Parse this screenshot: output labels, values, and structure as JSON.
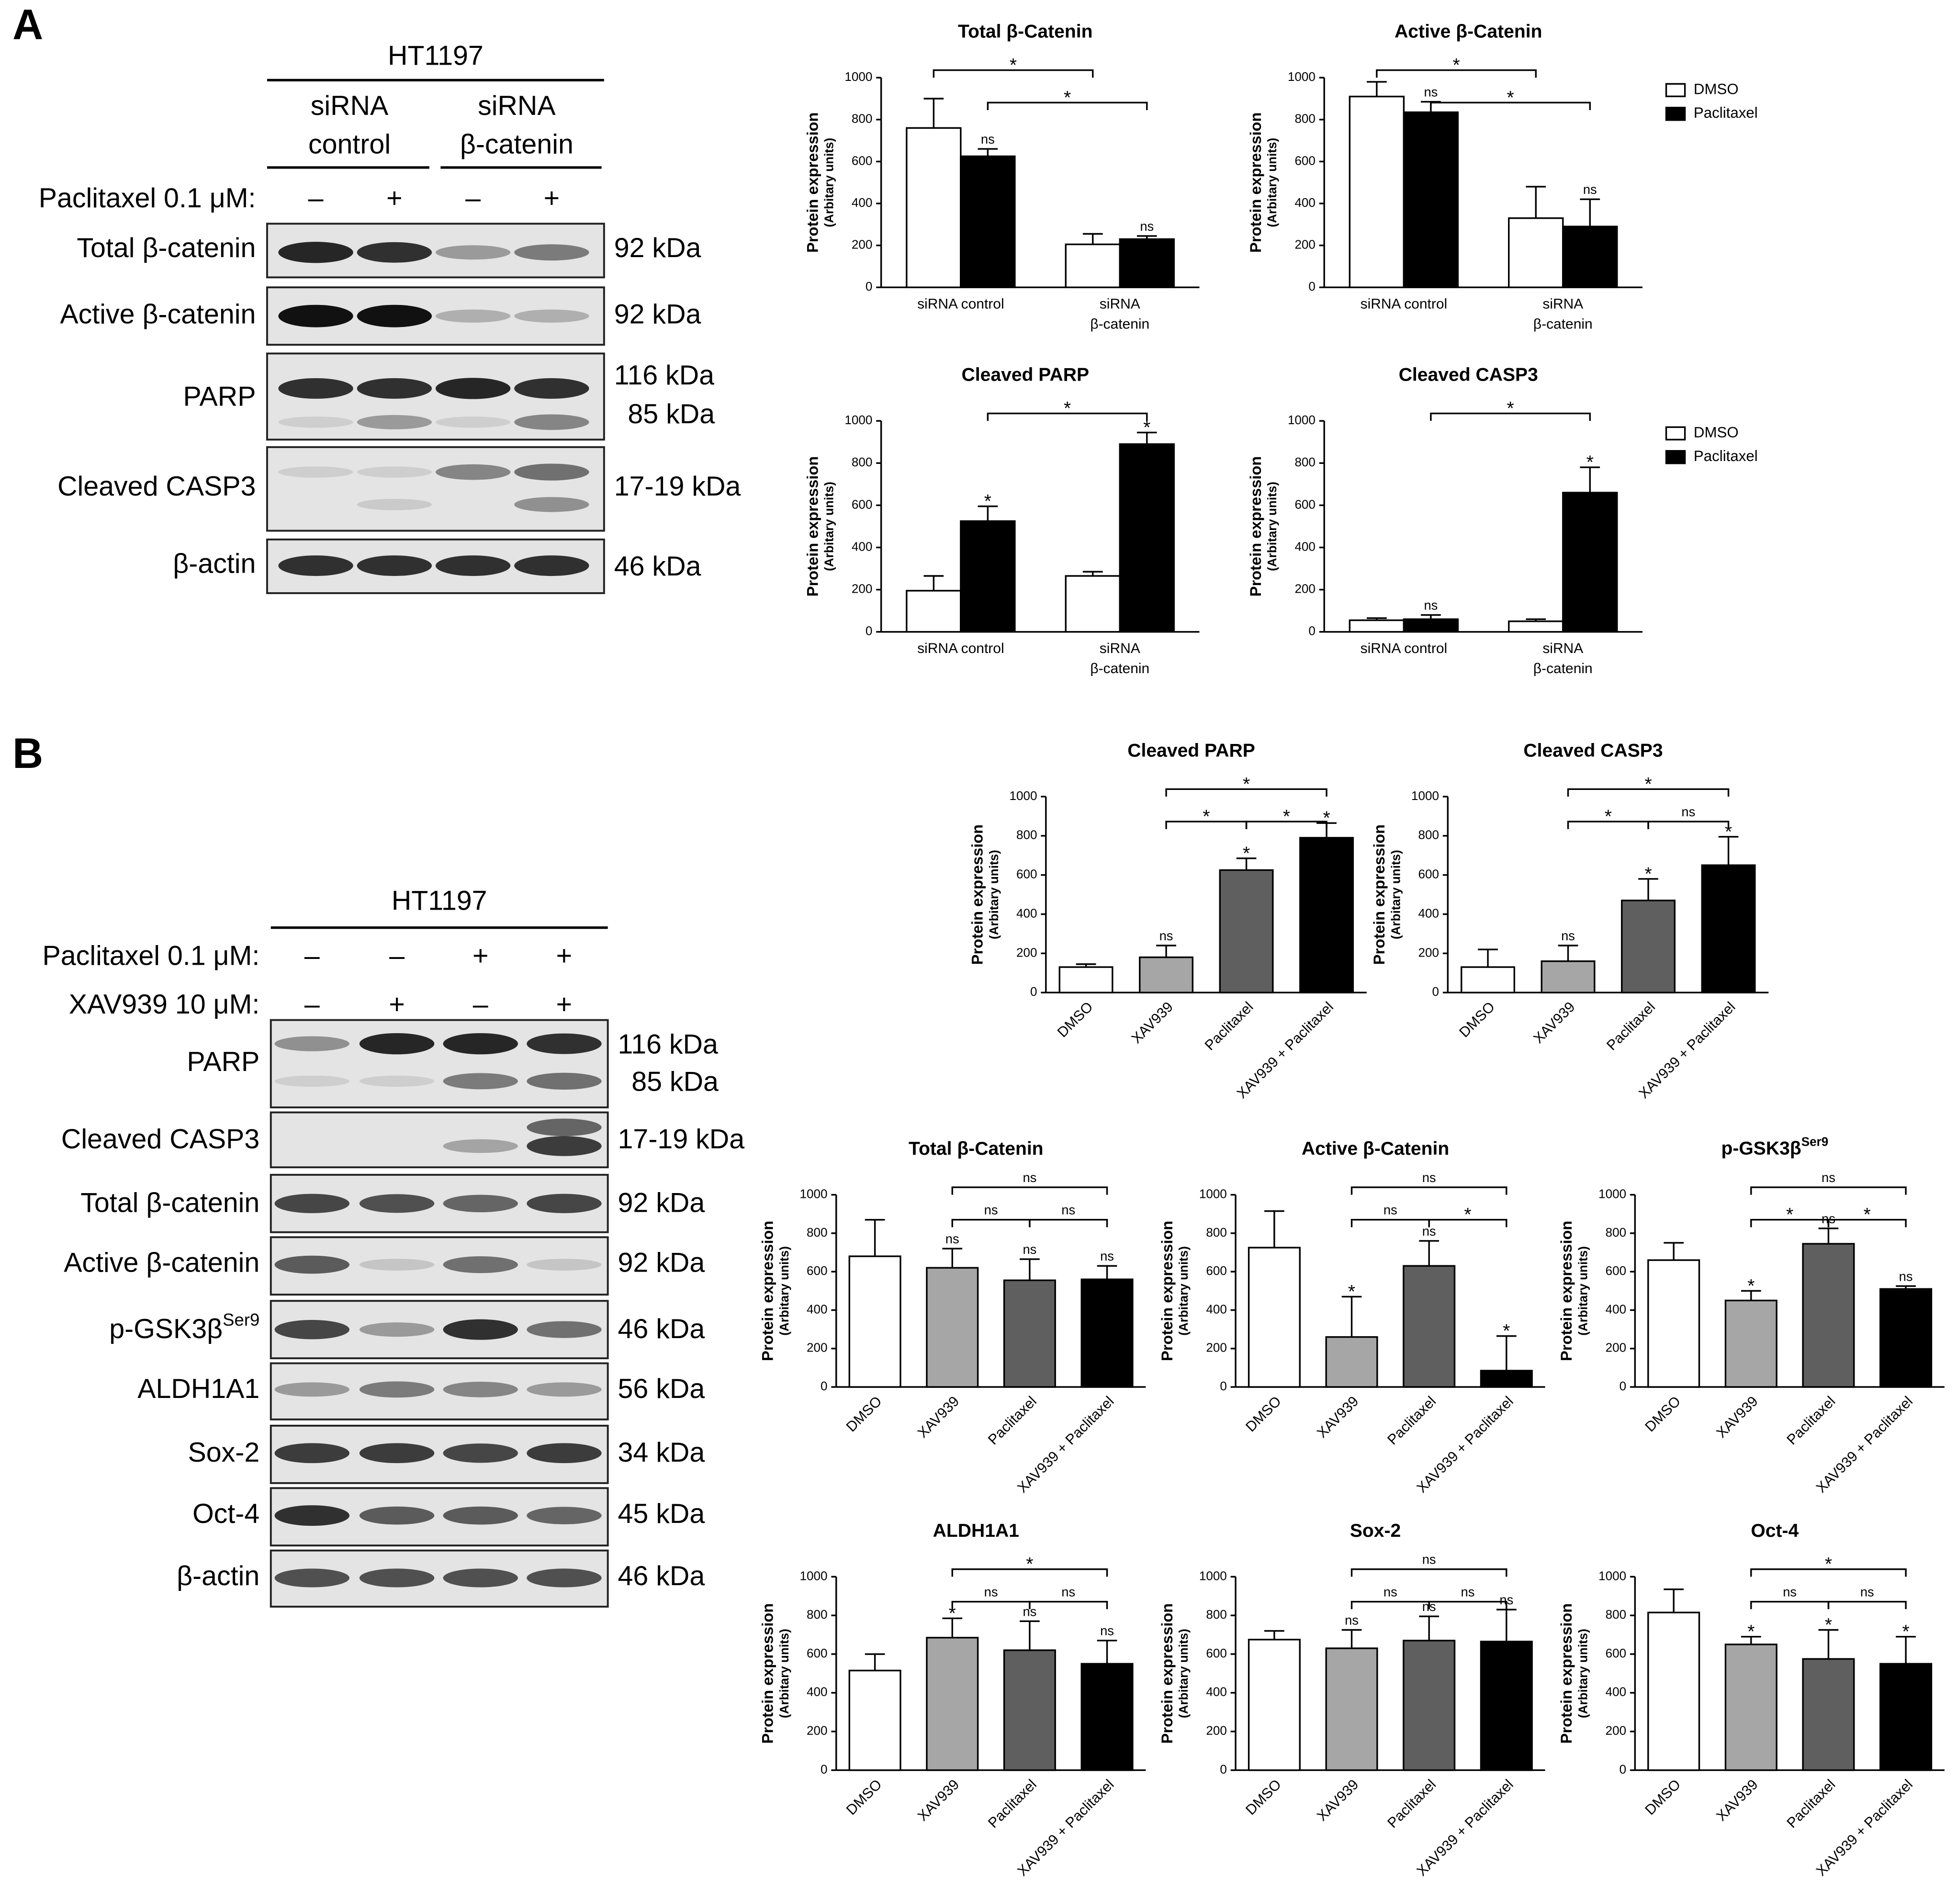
{
  "panel_labels": [
    "A",
    "B"
  ],
  "blots": [
    {
      "cell_line": "HT1197",
      "groups": [
        [
          "siRNA",
          "control"
        ],
        [
          "siRNA",
          "β-catenin"
        ]
      ],
      "treatments": [
        {
          "label": "Paclitaxel 0.1 μM:",
          "signs": [
            "–",
            "+",
            "–",
            "+"
          ]
        }
      ],
      "rows": [
        {
          "name": "Total β-catenin",
          "sizes": [
            "92 kDa"
          ]
        },
        {
          "name": "Active β-catenin",
          "sizes": [
            "92 kDa"
          ]
        },
        {
          "name": "PARP",
          "sizes": [
            "116 kDa",
            "85 kDa"
          ]
        },
        {
          "name": "Cleaved CASP3",
          "sizes": [
            "17-19 kDa"
          ]
        },
        {
          "name": "β-actin",
          "sizes": [
            "46 kDa"
          ]
        }
      ]
    },
    {
      "cell_line": "HT1197",
      "treatments": [
        {
          "label": "Paclitaxel 0.1 μM:",
          "signs": [
            "–",
            "–",
            "+",
            "+"
          ]
        },
        {
          "label": "XAV939 10 μM:",
          "signs": [
            "–",
            "+",
            "–",
            "+"
          ]
        }
      ],
      "rows": [
        {
          "name": "PARP",
          "sizes": [
            "116 kDa",
            "85 kDa"
          ]
        },
        {
          "name": "Cleaved CASP3",
          "sizes": [
            "17-19 kDa"
          ]
        },
        {
          "name": "Total β-catenin",
          "sizes": [
            "92 kDa"
          ]
        },
        {
          "name": "Active β-catenin",
          "sizes": [
            "92 kDa"
          ]
        },
        {
          "name": "p-GSK3β",
          "superscript": "Ser9",
          "sizes": [
            "46 kDa"
          ]
        },
        {
          "name": "ALDH1A1",
          "sizes": [
            "56 kDa"
          ]
        },
        {
          "name": "Sox-2",
          "sizes": [
            "34 kDa"
          ]
        },
        {
          "name": "Oct-4",
          "sizes": [
            "45 kDa"
          ]
        },
        {
          "name": "β-actin",
          "sizes": [
            "46 kDa"
          ]
        }
      ]
    }
  ],
  "chart_data": [
    {
      "type": "grouped_bar",
      "title": "Total β-Catenin",
      "y_label": "Protein expression",
      "y_label_sub": "(Arbitary units)",
      "categories": [
        [
          "siRNA control"
        ],
        [
          "siRNA",
          "β-catenin"
        ]
      ],
      "series": [
        {
          "name": "DMSO",
          "color": "#ffffff",
          "values": [
            760,
            205
          ],
          "errors": [
            140,
            50
          ],
          "labels": [
            null,
            null
          ]
        },
        {
          "name": "Paclitaxel",
          "color": "#000000",
          "values": [
            625,
            230
          ],
          "errors": [
            35,
            15
          ],
          "labels": [
            "ns",
            "ns"
          ]
        }
      ],
      "ylim": [
        0,
        1000
      ],
      "yticks": [
        0,
        200,
        400,
        600,
        800,
        1000
      ],
      "brackets": [
        {
          "from": 0,
          "to": 2,
          "label": "*"
        },
        {
          "from": 1,
          "to": 3,
          "label": "*"
        }
      ],
      "legend": false
    },
    {
      "type": "grouped_bar",
      "title": "Active β-Catenin",
      "y_label": "Protein expression",
      "y_label_sub": "(Arbitary units)",
      "categories": [
        [
          "siRNA control"
        ],
        [
          "siRNA",
          "β-catenin"
        ]
      ],
      "series": [
        {
          "name": "DMSO",
          "color": "#ffffff",
          "values": [
            910,
            330
          ],
          "errors": [
            70,
            150
          ],
          "labels": [
            null,
            null
          ]
        },
        {
          "name": "Paclitaxel",
          "color": "#000000",
          "values": [
            835,
            290
          ],
          "errors": [
            50,
            130
          ],
          "labels": [
            "ns",
            "ns"
          ]
        }
      ],
      "ylim": [
        0,
        1000
      ],
      "yticks": [
        0,
        200,
        400,
        600,
        800,
        1000
      ],
      "brackets": [
        {
          "from": 0,
          "to": 2,
          "label": "*"
        },
        {
          "from": 1,
          "to": 3,
          "label": "*"
        }
      ],
      "legend": true
    },
    {
      "type": "grouped_bar",
      "title": "Cleaved PARP",
      "y_label": "Protein expression",
      "y_label_sub": "(Arbitary units)",
      "categories": [
        [
          "siRNA control"
        ],
        [
          "siRNA",
          "β-catenin"
        ]
      ],
      "series": [
        {
          "name": "DMSO",
          "color": "#ffffff",
          "values": [
            195,
            265
          ],
          "errors": [
            70,
            20
          ],
          "labels": [
            null,
            null
          ]
        },
        {
          "name": "Paclitaxel",
          "color": "#000000",
          "values": [
            525,
            890
          ],
          "errors": [
            70,
            55
          ],
          "labels": [
            "*",
            "*"
          ]
        }
      ],
      "ylim": [
        0,
        1000
      ],
      "yticks": [
        0,
        200,
        400,
        600,
        800,
        1000
      ],
      "brackets": [
        {
          "from": 1,
          "to": 3,
          "label": "*"
        }
      ],
      "legend": false
    },
    {
      "type": "grouped_bar",
      "title": "Cleaved CASP3",
      "y_label": "Protein expression",
      "y_label_sub": "(Arbitary units)",
      "categories": [
        [
          "siRNA control"
        ],
        [
          "siRNA",
          "β-catenin"
        ]
      ],
      "series": [
        {
          "name": "DMSO",
          "color": "#ffffff",
          "values": [
            55,
            50
          ],
          "errors": [
            10,
            10
          ],
          "labels": [
            null,
            null
          ]
        },
        {
          "name": "Paclitaxel",
          "color": "#000000",
          "values": [
            60,
            660
          ],
          "errors": [
            20,
            120
          ],
          "labels": [
            "ns",
            "*"
          ]
        }
      ],
      "ylim": [
        0,
        1000
      ],
      "yticks": [
        0,
        200,
        400,
        600,
        800,
        1000
      ],
      "brackets": [
        {
          "from": 1,
          "to": 3,
          "label": "*"
        }
      ],
      "legend": true
    },
    {
      "type": "bar",
      "title": "Cleaved PARP",
      "y_label": "Protein expression",
      "y_label_sub": "(Arbitary units)",
      "categories": [
        "DMSO",
        "XAV939",
        "Paclitaxel",
        "XAV939 + Paclitaxel"
      ],
      "colors": [
        "#ffffff",
        "#a6a6a6",
        "#5f5f5f",
        "#000000"
      ],
      "values": [
        130,
        180,
        625,
        790
      ],
      "errors": [
        15,
        60,
        60,
        75
      ],
      "labels": [
        null,
        "ns",
        "*",
        "*"
      ],
      "ylim": [
        0,
        1000
      ],
      "yticks": [
        0,
        200,
        400,
        600,
        800,
        1000
      ],
      "brackets": [
        {
          "from": 1,
          "to": 3,
          "label": "*"
        },
        {
          "from": 2,
          "to": 3,
          "label": "*"
        },
        {
          "from": 1,
          "to": 2,
          "label": "*"
        }
      ]
    },
    {
      "type": "bar",
      "title": "Cleaved CASP3",
      "y_label": "Protein expression",
      "y_label_sub": "(Arbitary units)",
      "categories": [
        "DMSO",
        "XAV939",
        "Paclitaxel",
        "XAV939 + Paclitaxel"
      ],
      "colors": [
        "#ffffff",
        "#a6a6a6",
        "#5f5f5f",
        "#000000"
      ],
      "values": [
        130,
        160,
        470,
        650
      ],
      "errors": [
        90,
        80,
        110,
        145
      ],
      "labels": [
        null,
        "ns",
        "*",
        "*"
      ],
      "ylim": [
        0,
        1000
      ],
      "yticks": [
        0,
        200,
        400,
        600,
        800,
        1000
      ],
      "brackets": [
        {
          "from": 1,
          "to": 3,
          "label": "*"
        },
        {
          "from": 2,
          "to": 3,
          "label": "ns"
        },
        {
          "from": 1,
          "to": 2,
          "label": "*"
        }
      ]
    },
    {
      "type": "bar",
      "title": "Total β-Catenin",
      "y_label": "Protein expression",
      "y_label_sub": "(Arbitary units)",
      "categories": [
        "DMSO",
        "XAV939",
        "Paclitaxel",
        "XAV939 + Paclitaxel"
      ],
      "colors": [
        "#ffffff",
        "#a6a6a6",
        "#5f5f5f",
        "#000000"
      ],
      "values": [
        680,
        620,
        555,
        560
      ],
      "errors": [
        190,
        100,
        110,
        70
      ],
      "labels": [
        null,
        "ns",
        "ns",
        "ns"
      ],
      "ylim": [
        0,
        1000
      ],
      "yticks": [
        0,
        200,
        400,
        600,
        800,
        1000
      ],
      "brackets": [
        {
          "from": 1,
          "to": 3,
          "label": "ns"
        },
        {
          "from": 1,
          "to": 2,
          "label": "ns"
        },
        {
          "from": 2,
          "to": 3,
          "label": "ns"
        }
      ]
    },
    {
      "type": "bar",
      "title": "Active β-Catenin",
      "y_label": "Protein expression",
      "y_label_sub": "(Arbitary units)",
      "categories": [
        "DMSO",
        "XAV939",
        "Paclitaxel",
        "XAV939 + Paclitaxel"
      ],
      "colors": [
        "#ffffff",
        "#a6a6a6",
        "#5f5f5f",
        "#000000"
      ],
      "values": [
        725,
        260,
        630,
        85
      ],
      "errors": [
        190,
        210,
        130,
        180
      ],
      "labels": [
        null,
        "*",
        "ns",
        "*"
      ],
      "ylim": [
        0,
        1000
      ],
      "yticks": [
        0,
        200,
        400,
        600,
        800,
        1000
      ],
      "brackets": [
        {
          "from": 1,
          "to": 3,
          "label": "ns"
        },
        {
          "from": 1,
          "to": 2,
          "label": "ns"
        },
        {
          "from": 2,
          "to": 3,
          "label": "*"
        }
      ]
    },
    {
      "type": "bar",
      "title": "p-GSK3β",
      "title_superscript": "Ser9",
      "y_label": "Protein expression",
      "y_label_sub": "(Arbitary units)",
      "categories": [
        "DMSO",
        "XAV939",
        "Paclitaxel",
        "XAV939 + Paclitaxel"
      ],
      "colors": [
        "#ffffff",
        "#a6a6a6",
        "#5f5f5f",
        "#000000"
      ],
      "values": [
        660,
        450,
        745,
        510
      ],
      "errors": [
        90,
        50,
        80,
        15
      ],
      "labels": [
        null,
        "*",
        "ns",
        "ns"
      ],
      "ylim": [
        0,
        1000
      ],
      "yticks": [
        0,
        200,
        400,
        600,
        800,
        1000
      ],
      "brackets": [
        {
          "from": 1,
          "to": 3,
          "label": "ns"
        },
        {
          "from": 1,
          "to": 2,
          "label": "*"
        },
        {
          "from": 2,
          "to": 3,
          "label": "*"
        }
      ]
    },
    {
      "type": "bar",
      "title": "ALDH1A1",
      "y_label": "Protein expression",
      "y_label_sub": "(Arbitary units)",
      "categories": [
        "DMSO",
        "XAV939",
        "Paclitaxel",
        "XAV939 + Paclitaxel"
      ],
      "colors": [
        "#ffffff",
        "#a6a6a6",
        "#5f5f5f",
        "#000000"
      ],
      "values": [
        515,
        685,
        620,
        550
      ],
      "errors": [
        85,
        100,
        150,
        120
      ],
      "labels": [
        null,
        "*",
        "ns",
        "ns"
      ],
      "ylim": [
        0,
        1000
      ],
      "yticks": [
        0,
        200,
        400,
        600,
        800,
        1000
      ],
      "brackets": [
        {
          "from": 1,
          "to": 3,
          "label": "*"
        },
        {
          "from": 1,
          "to": 2,
          "label": "ns"
        },
        {
          "from": 2,
          "to": 3,
          "label": "ns"
        }
      ]
    },
    {
      "type": "bar",
      "title": "Sox-2",
      "y_label": "Protein expression",
      "y_label_sub": "(Arbitary units)",
      "categories": [
        "DMSO",
        "XAV939",
        "Paclitaxel",
        "XAV939 + Paclitaxel"
      ],
      "colors": [
        "#ffffff",
        "#a6a6a6",
        "#5f5f5f",
        "#000000"
      ],
      "values": [
        675,
        630,
        670,
        665
      ],
      "errors": [
        45,
        95,
        125,
        165
      ],
      "labels": [
        null,
        "ns",
        "ns",
        "ns"
      ],
      "ylim": [
        0,
        1000
      ],
      "yticks": [
        0,
        200,
        400,
        600,
        800,
        1000
      ],
      "brackets": [
        {
          "from": 1,
          "to": 3,
          "label": "ns"
        },
        {
          "from": 1,
          "to": 2,
          "label": "ns"
        },
        {
          "from": 2,
          "to": 3,
          "label": "ns"
        }
      ]
    },
    {
      "type": "bar",
      "title": "Oct-4",
      "y_label": "Protein expression",
      "y_label_sub": "(Arbitary units)",
      "categories": [
        "DMSO",
        "XAV939",
        "Paclitaxel",
        "XAV939 + Paclitaxel"
      ],
      "colors": [
        "#ffffff",
        "#a6a6a6",
        "#5f5f5f",
        "#000000"
      ],
      "values": [
        815,
        650,
        575,
        550
      ],
      "errors": [
        120,
        40,
        150,
        140
      ],
      "labels": [
        null,
        "*",
        "*",
        "*"
      ],
      "ylim": [
        0,
        1000
      ],
      "yticks": [
        0,
        200,
        400,
        600,
        800,
        1000
      ],
      "brackets": [
        {
          "from": 1,
          "to": 3,
          "label": "*"
        },
        {
          "from": 1,
          "to": 2,
          "label": "ns"
        },
        {
          "from": 2,
          "to": 3,
          "label": "ns"
        }
      ]
    }
  ]
}
